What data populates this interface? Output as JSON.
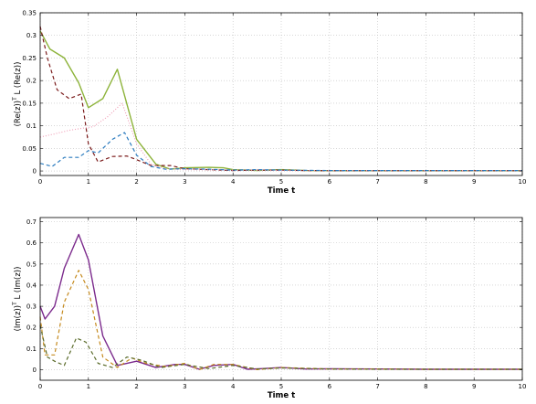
{
  "chart_data": [
    {
      "type": "line",
      "xlabel": "Time t",
      "ylabel": "(Re(z))",
      "ylabel_sup": "T",
      "ylabel_mid": " L (Re(z))",
      "xlim": [
        0,
        10
      ],
      "ylim": [
        -0.01,
        0.35
      ],
      "xticks": [
        "0",
        "1",
        "2",
        "3",
        "4",
        "5",
        "6",
        "7",
        "8",
        "9",
        "10"
      ],
      "yticks": [
        {
          "v": 0,
          "t": "0"
        },
        {
          "v": 0.05,
          "t": "0.05"
        },
        {
          "v": 0.1,
          "t": "0.1"
        },
        {
          "v": 0.15,
          "t": "0.15"
        },
        {
          "v": 0.2,
          "t": "0.2"
        },
        {
          "v": 0.25,
          "t": "0.25"
        },
        {
          "v": 0.3,
          "t": "0.3"
        },
        {
          "v": 0.35,
          "t": "0.35"
        }
      ],
      "grid": true,
      "series": [
        {
          "color": "#8db33a",
          "dash": "solid",
          "x": [
            0,
            0.2,
            0.5,
            0.8,
            1.0,
            1.3,
            1.6,
            2.0,
            2.4,
            2.7,
            3.0,
            3.5,
            3.8,
            4.0,
            4.5,
            5.0,
            5.5,
            6,
            7,
            8,
            9,
            10
          ],
          "y": [
            0.31,
            0.27,
            0.25,
            0.195,
            0.14,
            0.16,
            0.225,
            0.07,
            0.015,
            0.004,
            0.007,
            0.008,
            0.007,
            0.003,
            0.001,
            0.003,
            0.001,
            0.0005,
            0.0005,
            0.0005,
            0.0005,
            0.0005
          ]
        },
        {
          "color": "#7b1c1c",
          "dash": "4,3",
          "x": [
            0,
            0.15,
            0.35,
            0.6,
            0.85,
            1.0,
            1.2,
            1.5,
            1.8,
            2.0,
            2.3,
            2.7,
            3.0,
            3.5,
            4.0,
            4.5,
            5.0,
            5.5,
            6,
            7,
            8,
            9,
            10
          ],
          "y": [
            0.32,
            0.25,
            0.18,
            0.16,
            0.17,
            0.06,
            0.02,
            0.032,
            0.033,
            0.025,
            0.012,
            0.012,
            0.005,
            0.003,
            0.001,
            0.002,
            0.002,
            0.001,
            0.0005,
            0.0005,
            0.0005,
            0.0005,
            0.0005
          ]
        },
        {
          "color": "#f0a0b8",
          "dash": "1,2",
          "x": [
            0,
            0.3,
            0.6,
            0.9,
            1.1,
            1.4,
            1.7,
            2.0,
            2.3,
            2.6,
            3.0,
            4,
            5,
            6,
            7,
            8,
            9,
            10
          ],
          "y": [
            0.075,
            0.082,
            0.09,
            0.095,
            0.098,
            0.12,
            0.15,
            0.06,
            0.015,
            0.005,
            0.003,
            0.002,
            0.001,
            0.001,
            0.001,
            0.001,
            0.001,
            0.001
          ]
        },
        {
          "color": "#2b7bbf",
          "dash": "4,3",
          "x": [
            0,
            0.25,
            0.5,
            0.8,
            1.0,
            1.2,
            1.5,
            1.75,
            2.0,
            2.3,
            2.6,
            3.0,
            3.5,
            4.0,
            4.5,
            5.0,
            6,
            7,
            8,
            9,
            10
          ],
          "y": [
            0.017,
            0.01,
            0.03,
            0.03,
            0.045,
            0.04,
            0.07,
            0.085,
            0.035,
            0.01,
            0.004,
            0.005,
            0.004,
            0.002,
            0.003,
            0.002,
            0.001,
            0.001,
            0.001,
            0.001,
            0.001
          ]
        }
      ]
    },
    {
      "type": "line",
      "xlabel": "Time t",
      "ylabel": "(Im(z))",
      "ylabel_sup": "T",
      "ylabel_mid": " L (Im(z))",
      "xlim": [
        0,
        10
      ],
      "ylim": [
        -0.05,
        0.72
      ],
      "xticks": [
        "0",
        "1",
        "2",
        "3",
        "4",
        "5",
        "6",
        "7",
        "8",
        "9",
        "10"
      ],
      "yticks": [
        {
          "v": 0,
          "t": "0"
        },
        {
          "v": 0.1,
          "t": "0.1"
        },
        {
          "v": 0.2,
          "t": "0.2"
        },
        {
          "v": 0.3,
          "t": "0.3"
        },
        {
          "v": 0.4,
          "t": "0.4"
        },
        {
          "v": 0.5,
          "t": "0.5"
        },
        {
          "v": 0.6,
          "t": "0.6"
        },
        {
          "v": 0.7,
          "t": "0.7"
        }
      ],
      "grid": true,
      "series": [
        {
          "color": "#7b2a8c",
          "dash": "solid",
          "x": [
            0,
            0.1,
            0.3,
            0.5,
            0.8,
            1.0,
            1.3,
            1.6,
            2.0,
            2.4,
            2.8,
            3.0,
            3.3,
            3.6,
            4.0,
            4.3,
            4.6,
            5.0,
            5.5,
            6,
            7,
            8,
            9,
            10
          ],
          "y": [
            0.3,
            0.24,
            0.3,
            0.48,
            0.64,
            0.52,
            0.16,
            0.02,
            0.04,
            0.01,
            0.025,
            0.025,
            0.002,
            0.02,
            0.025,
            0.002,
            0.005,
            0.01,
            0.003,
            0.004,
            0.003,
            0.002,
            0.002,
            0.002
          ]
        },
        {
          "color": "#c58a1e",
          "dash": "4,3",
          "x": [
            0,
            0.1,
            0.3,
            0.5,
            0.8,
            1.0,
            1.3,
            1.6,
            1.9,
            2.2,
            2.6,
            3.0,
            3.3,
            3.6,
            4.0,
            4.5,
            5.0,
            6,
            7,
            8,
            9,
            10
          ],
          "y": [
            0.25,
            0.07,
            0.07,
            0.32,
            0.47,
            0.38,
            0.06,
            0.01,
            0.055,
            0.03,
            0.015,
            0.03,
            0.0,
            0.025,
            0.025,
            0.0,
            0.01,
            0.003,
            0.003,
            0.002,
            0.002,
            0.002
          ]
        },
        {
          "color": "#5a6b2a",
          "dash": "4,3",
          "x": [
            0,
            0.15,
            0.3,
            0.5,
            0.75,
            0.95,
            1.2,
            1.5,
            1.8,
            2.1,
            2.5,
            3.0,
            3.5,
            4.0,
            4.5,
            5.0,
            6,
            7,
            8,
            9,
            10
          ],
          "y": [
            0.21,
            0.06,
            0.04,
            0.02,
            0.15,
            0.13,
            0.03,
            0.01,
            0.06,
            0.045,
            0.01,
            0.025,
            0.005,
            0.02,
            0.003,
            0.008,
            0.003,
            0.002,
            0.002,
            0.002,
            0.002
          ]
        }
      ]
    }
  ]
}
